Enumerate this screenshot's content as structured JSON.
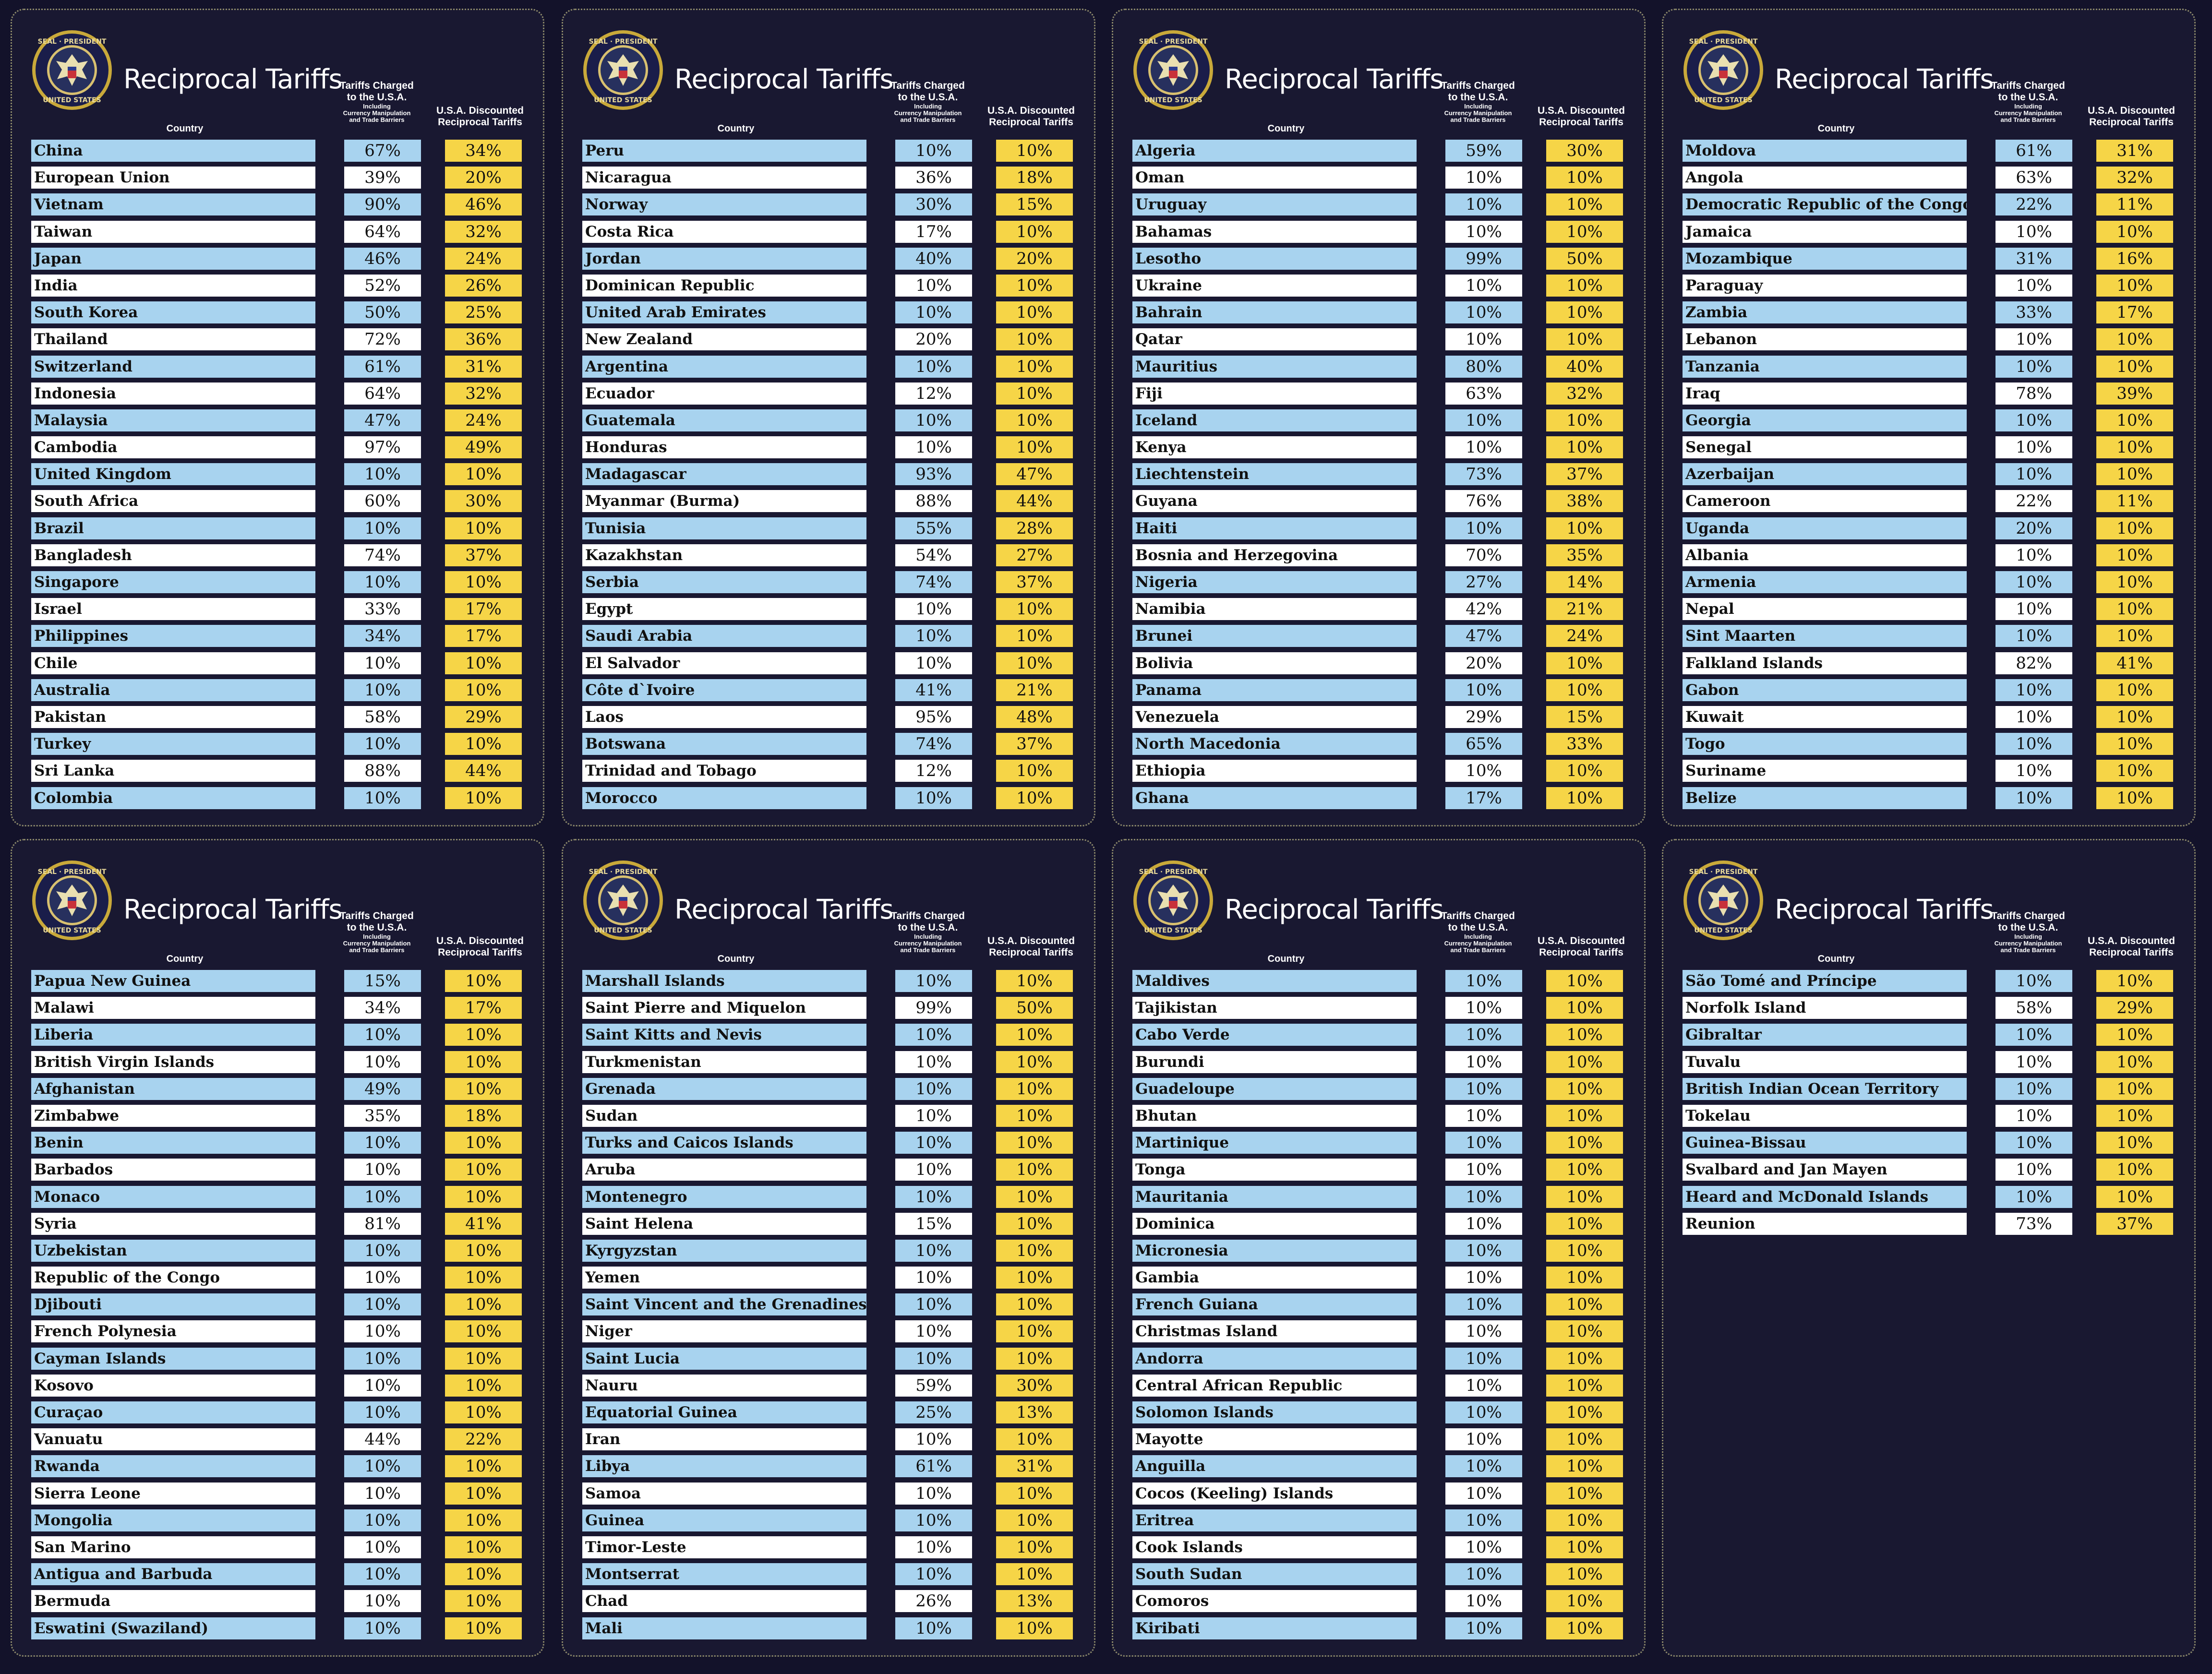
{
  "title": "Reciprocal Tariffs",
  "seal_text": "SEAL OF THE PRESIDENT OF THE UNITED STATES",
  "headers": {
    "country": "Country",
    "charged_line1": "Tariffs Charged",
    "charged_line2": "to the U.S.A.",
    "charged_sub1": "Including",
    "charged_sub2": "Currency Manipulation",
    "charged_sub3": "and Trade Barriers",
    "discounted_line1": "U.S.A. Discounted",
    "discounted_line2": "Reciprocal Tariffs"
  },
  "colors": {
    "background": "#13122a",
    "panel": "#191831",
    "country_odd": "#a8d3ef",
    "country_even": "#ffffff",
    "discounted": "#f6d547"
  },
  "panels": [
    {
      "rows": [
        [
          "China",
          "67%",
          "34%"
        ],
        [
          "European Union",
          "39%",
          "20%"
        ],
        [
          "Vietnam",
          "90%",
          "46%"
        ],
        [
          "Taiwan",
          "64%",
          "32%"
        ],
        [
          "Japan",
          "46%",
          "24%"
        ],
        [
          "India",
          "52%",
          "26%"
        ],
        [
          "South Korea",
          "50%",
          "25%"
        ],
        [
          "Thailand",
          "72%",
          "36%"
        ],
        [
          "Switzerland",
          "61%",
          "31%"
        ],
        [
          "Indonesia",
          "64%",
          "32%"
        ],
        [
          "Malaysia",
          "47%",
          "24%"
        ],
        [
          "Cambodia",
          "97%",
          "49%"
        ],
        [
          "United Kingdom",
          "10%",
          "10%"
        ],
        [
          "South Africa",
          "60%",
          "30%"
        ],
        [
          "Brazil",
          "10%",
          "10%"
        ],
        [
          "Bangladesh",
          "74%",
          "37%"
        ],
        [
          "Singapore",
          "10%",
          "10%"
        ],
        [
          "Israel",
          "33%",
          "17%"
        ],
        [
          "Philippines",
          "34%",
          "17%"
        ],
        [
          "Chile",
          "10%",
          "10%"
        ],
        [
          "Australia",
          "10%",
          "10%"
        ],
        [
          "Pakistan",
          "58%",
          "29%"
        ],
        [
          "Turkey",
          "10%",
          "10%"
        ],
        [
          "Sri Lanka",
          "88%",
          "44%"
        ],
        [
          "Colombia",
          "10%",
          "10%"
        ]
      ]
    },
    {
      "rows": [
        [
          "Peru",
          "10%",
          "10%"
        ],
        [
          "Nicaragua",
          "36%",
          "18%"
        ],
        [
          "Norway",
          "30%",
          "15%"
        ],
        [
          "Costa Rica",
          "17%",
          "10%"
        ],
        [
          "Jordan",
          "40%",
          "20%"
        ],
        [
          "Dominican Republic",
          "10%",
          "10%"
        ],
        [
          "United Arab Emirates",
          "10%",
          "10%"
        ],
        [
          "New Zealand",
          "20%",
          "10%"
        ],
        [
          "Argentina",
          "10%",
          "10%"
        ],
        [
          "Ecuador",
          "12%",
          "10%"
        ],
        [
          "Guatemala",
          "10%",
          "10%"
        ],
        [
          "Honduras",
          "10%",
          "10%"
        ],
        [
          "Madagascar",
          "93%",
          "47%"
        ],
        [
          "Myanmar (Burma)",
          "88%",
          "44%"
        ],
        [
          "Tunisia",
          "55%",
          "28%"
        ],
        [
          "Kazakhstan",
          "54%",
          "27%"
        ],
        [
          "Serbia",
          "74%",
          "37%"
        ],
        [
          "Egypt",
          "10%",
          "10%"
        ],
        [
          "Saudi Arabia",
          "10%",
          "10%"
        ],
        [
          "El Salvador",
          "10%",
          "10%"
        ],
        [
          "Côte d`Ivoire",
          "41%",
          "21%"
        ],
        [
          "Laos",
          "95%",
          "48%"
        ],
        [
          "Botswana",
          "74%",
          "37%"
        ],
        [
          "Trinidad and Tobago",
          "12%",
          "10%"
        ],
        [
          "Morocco",
          "10%",
          "10%"
        ]
      ]
    },
    {
      "rows": [
        [
          "Algeria",
          "59%",
          "30%"
        ],
        [
          "Oman",
          "10%",
          "10%"
        ],
        [
          "Uruguay",
          "10%",
          "10%"
        ],
        [
          "Bahamas",
          "10%",
          "10%"
        ],
        [
          "Lesotho",
          "99%",
          "50%"
        ],
        [
          "Ukraine",
          "10%",
          "10%"
        ],
        [
          "Bahrain",
          "10%",
          "10%"
        ],
        [
          "Qatar",
          "10%",
          "10%"
        ],
        [
          "Mauritius",
          "80%",
          "40%"
        ],
        [
          "Fiji",
          "63%",
          "32%"
        ],
        [
          "Iceland",
          "10%",
          "10%"
        ],
        [
          "Kenya",
          "10%",
          "10%"
        ],
        [
          "Liechtenstein",
          "73%",
          "37%"
        ],
        [
          "Guyana",
          "76%",
          "38%"
        ],
        [
          "Haiti",
          "10%",
          "10%"
        ],
        [
          "Bosnia and Herzegovina",
          "70%",
          "35%"
        ],
        [
          "Nigeria",
          "27%",
          "14%"
        ],
        [
          "Namibia",
          "42%",
          "21%"
        ],
        [
          "Brunei",
          "47%",
          "24%"
        ],
        [
          "Bolivia",
          "20%",
          "10%"
        ],
        [
          "Panama",
          "10%",
          "10%"
        ],
        [
          "Venezuela",
          "29%",
          "15%"
        ],
        [
          "North Macedonia",
          "65%",
          "33%"
        ],
        [
          "Ethiopia",
          "10%",
          "10%"
        ],
        [
          "Ghana",
          "17%",
          "10%"
        ]
      ]
    },
    {
      "rows": [
        [
          "Moldova",
          "61%",
          "31%"
        ],
        [
          "Angola",
          "63%",
          "32%"
        ],
        [
          "Democratic Republic of the Congo",
          "22%",
          "11%"
        ],
        [
          "Jamaica",
          "10%",
          "10%"
        ],
        [
          "Mozambique",
          "31%",
          "16%"
        ],
        [
          "Paraguay",
          "10%",
          "10%"
        ],
        [
          "Zambia",
          "33%",
          "17%"
        ],
        [
          "Lebanon",
          "10%",
          "10%"
        ],
        [
          "Tanzania",
          "10%",
          "10%"
        ],
        [
          "Iraq",
          "78%",
          "39%"
        ],
        [
          "Georgia",
          "10%",
          "10%"
        ],
        [
          "Senegal",
          "10%",
          "10%"
        ],
        [
          "Azerbaijan",
          "10%",
          "10%"
        ],
        [
          "Cameroon",
          "22%",
          "11%"
        ],
        [
          "Uganda",
          "20%",
          "10%"
        ],
        [
          "Albania",
          "10%",
          "10%"
        ],
        [
          "Armenia",
          "10%",
          "10%"
        ],
        [
          "Nepal",
          "10%",
          "10%"
        ],
        [
          "Sint Maarten",
          "10%",
          "10%"
        ],
        [
          "Falkland Islands",
          "82%",
          "41%"
        ],
        [
          "Gabon",
          "10%",
          "10%"
        ],
        [
          "Kuwait",
          "10%",
          "10%"
        ],
        [
          "Togo",
          "10%",
          "10%"
        ],
        [
          "Suriname",
          "10%",
          "10%"
        ],
        [
          "Belize",
          "10%",
          "10%"
        ]
      ]
    },
    {
      "rows": [
        [
          "Papua New Guinea",
          "15%",
          "10%"
        ],
        [
          "Malawi",
          "34%",
          "17%"
        ],
        [
          "Liberia",
          "10%",
          "10%"
        ],
        [
          "British Virgin Islands",
          "10%",
          "10%"
        ],
        [
          "Afghanistan",
          "49%",
          "10%"
        ],
        [
          "Zimbabwe",
          "35%",
          "18%"
        ],
        [
          "Benin",
          "10%",
          "10%"
        ],
        [
          "Barbados",
          "10%",
          "10%"
        ],
        [
          "Monaco",
          "10%",
          "10%"
        ],
        [
          "Syria",
          "81%",
          "41%"
        ],
        [
          "Uzbekistan",
          "10%",
          "10%"
        ],
        [
          "Republic of the Congo",
          "10%",
          "10%"
        ],
        [
          "Djibouti",
          "10%",
          "10%"
        ],
        [
          "French Polynesia",
          "10%",
          "10%"
        ],
        [
          "Cayman Islands",
          "10%",
          "10%"
        ],
        [
          "Kosovo",
          "10%",
          "10%"
        ],
        [
          "Curaçao",
          "10%",
          "10%"
        ],
        [
          "Vanuatu",
          "44%",
          "22%"
        ],
        [
          "Rwanda",
          "10%",
          "10%"
        ],
        [
          "Sierra Leone",
          "10%",
          "10%"
        ],
        [
          "Mongolia",
          "10%",
          "10%"
        ],
        [
          "San Marino",
          "10%",
          "10%"
        ],
        [
          "Antigua and Barbuda",
          "10%",
          "10%"
        ],
        [
          "Bermuda",
          "10%",
          "10%"
        ],
        [
          "Eswatini (Swaziland)",
          "10%",
          "10%"
        ]
      ]
    },
    {
      "rows": [
        [
          "Marshall Islands",
          "10%",
          "10%"
        ],
        [
          "Saint Pierre and Miquelon",
          "99%",
          "50%"
        ],
        [
          "Saint Kitts and Nevis",
          "10%",
          "10%"
        ],
        [
          "Turkmenistan",
          "10%",
          "10%"
        ],
        [
          "Grenada",
          "10%",
          "10%"
        ],
        [
          "Sudan",
          "10%",
          "10%"
        ],
        [
          "Turks and Caicos Islands",
          "10%",
          "10%"
        ],
        [
          "Aruba",
          "10%",
          "10%"
        ],
        [
          "Montenegro",
          "10%",
          "10%"
        ],
        [
          "Saint Helena",
          "15%",
          "10%"
        ],
        [
          "Kyrgyzstan",
          "10%",
          "10%"
        ],
        [
          "Yemen",
          "10%",
          "10%"
        ],
        [
          "Saint Vincent and the Grenadines",
          "10%",
          "10%"
        ],
        [
          "Niger",
          "10%",
          "10%"
        ],
        [
          "Saint Lucia",
          "10%",
          "10%"
        ],
        [
          "Nauru",
          "59%",
          "30%"
        ],
        [
          "Equatorial Guinea",
          "25%",
          "13%"
        ],
        [
          "Iran",
          "10%",
          "10%"
        ],
        [
          "Libya",
          "61%",
          "31%"
        ],
        [
          "Samoa",
          "10%",
          "10%"
        ],
        [
          "Guinea",
          "10%",
          "10%"
        ],
        [
          "Timor-Leste",
          "10%",
          "10%"
        ],
        [
          "Montserrat",
          "10%",
          "10%"
        ],
        [
          "Chad",
          "26%",
          "13%"
        ],
        [
          "Mali",
          "10%",
          "10%"
        ]
      ]
    },
    {
      "rows": [
        [
          "Maldives",
          "10%",
          "10%"
        ],
        [
          "Tajikistan",
          "10%",
          "10%"
        ],
        [
          "Cabo Verde",
          "10%",
          "10%"
        ],
        [
          "Burundi",
          "10%",
          "10%"
        ],
        [
          "Guadeloupe",
          "10%",
          "10%"
        ],
        [
          "Bhutan",
          "10%",
          "10%"
        ],
        [
          "Martinique",
          "10%",
          "10%"
        ],
        [
          "Tonga",
          "10%",
          "10%"
        ],
        [
          "Mauritania",
          "10%",
          "10%"
        ],
        [
          "Dominica",
          "10%",
          "10%"
        ],
        [
          "Micronesia",
          "10%",
          "10%"
        ],
        [
          "Gambia",
          "10%",
          "10%"
        ],
        [
          "French Guiana",
          "10%",
          "10%"
        ],
        [
          "Christmas Island",
          "10%",
          "10%"
        ],
        [
          "Andorra",
          "10%",
          "10%"
        ],
        [
          "Central African Republic",
          "10%",
          "10%"
        ],
        [
          "Solomon Islands",
          "10%",
          "10%"
        ],
        [
          "Mayotte",
          "10%",
          "10%"
        ],
        [
          "Anguilla",
          "10%",
          "10%"
        ],
        [
          "Cocos (Keeling) Islands",
          "10%",
          "10%"
        ],
        [
          "Eritrea",
          "10%",
          "10%"
        ],
        [
          "Cook Islands",
          "10%",
          "10%"
        ],
        [
          "South Sudan",
          "10%",
          "10%"
        ],
        [
          "Comoros",
          "10%",
          "10%"
        ],
        [
          "Kiribati",
          "10%",
          "10%"
        ]
      ]
    },
    {
      "rows": [
        [
          "São Tomé and Príncipe",
          "10%",
          "10%"
        ],
        [
          "Norfolk Island",
          "58%",
          "29%"
        ],
        [
          "Gibraltar",
          "10%",
          "10%"
        ],
        [
          "Tuvalu",
          "10%",
          "10%"
        ],
        [
          "British Indian Ocean Territory",
          "10%",
          "10%"
        ],
        [
          "Tokelau",
          "10%",
          "10%"
        ],
        [
          "Guinea-Bissau",
          "10%",
          "10%"
        ],
        [
          "Svalbard and Jan Mayen",
          "10%",
          "10%"
        ],
        [
          "Heard and McDonald Islands",
          "10%",
          "10%"
        ],
        [
          "Reunion",
          "73%",
          "37%"
        ]
      ]
    }
  ]
}
